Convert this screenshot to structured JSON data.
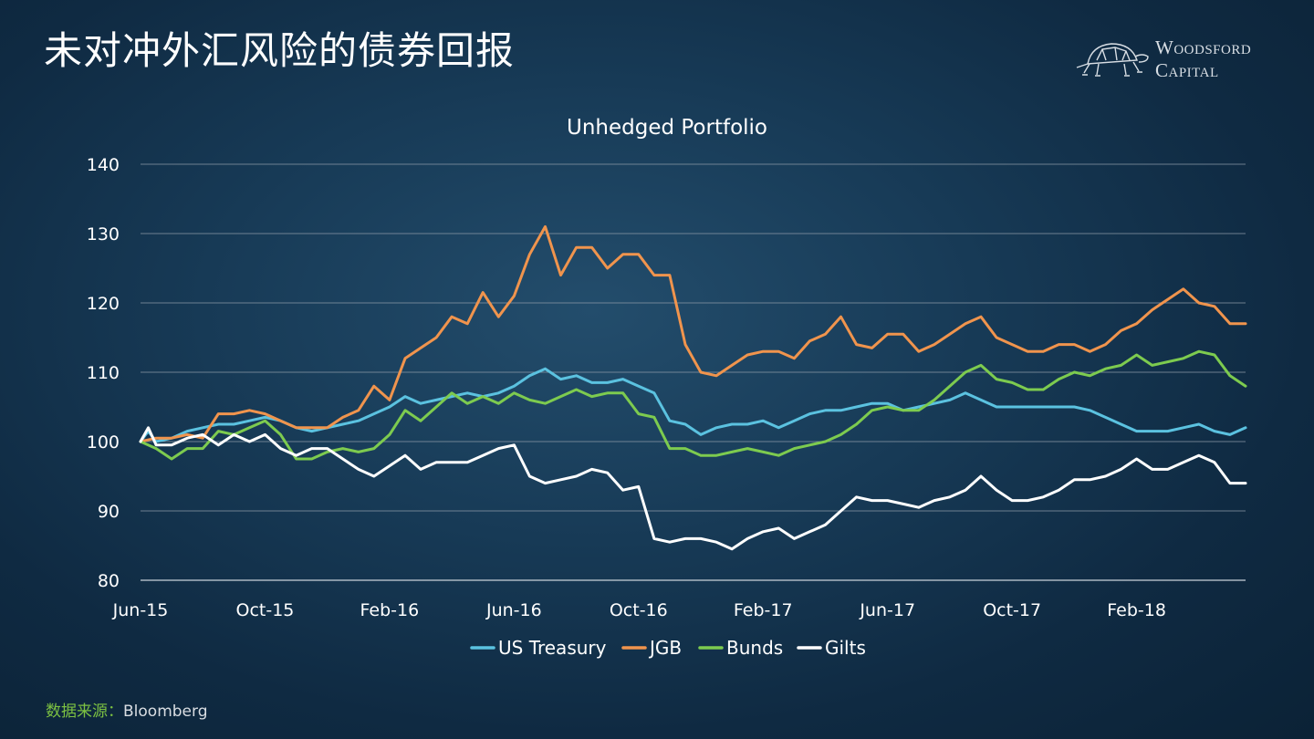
{
  "slide": {
    "title": "未对冲外汇风险的债券回报",
    "source_label": "数据来源：",
    "source_value": "Bloomberg"
  },
  "logo": {
    "line1": "Woodsford",
    "line2": "Capital",
    "icon": "tortoise-icon"
  },
  "chart_data": {
    "type": "line",
    "title": "Unhedged Portfolio",
    "xlabel": "",
    "ylabel": "",
    "ylim": [
      80,
      140
    ],
    "yticks": [
      80,
      90,
      100,
      110,
      120,
      130,
      140
    ],
    "xlim": [
      0,
      35.5
    ],
    "xticks": [
      {
        "label": "Jun-15",
        "x": 0
      },
      {
        "label": "Oct-15",
        "x": 4
      },
      {
        "label": "Feb-16",
        "x": 8
      },
      {
        "label": "Jun-16",
        "x": 12
      },
      {
        "label": "Oct-16",
        "x": 16
      },
      {
        "label": "Feb-17",
        "x": 20
      },
      {
        "label": "Jun-17",
        "x": 24
      },
      {
        "label": "Oct-17",
        "x": 28
      },
      {
        "label": "Feb-18",
        "x": 32
      }
    ],
    "grid": true,
    "legend_position": "bottom",
    "series": [
      {
        "name": "US Treasury",
        "color": "#5bc2e0",
        "points": [
          [
            0,
            100
          ],
          [
            0.25,
            101.5
          ],
          [
            0.5,
            100
          ],
          [
            1,
            100.5
          ],
          [
            1.5,
            101.5
          ],
          [
            2,
            102
          ],
          [
            2.5,
            102.5
          ],
          [
            3,
            102.5
          ],
          [
            3.5,
            103
          ],
          [
            4,
            103.5
          ],
          [
            4.5,
            103
          ],
          [
            5,
            102
          ],
          [
            5.5,
            101.5
          ],
          [
            6,
            102
          ],
          [
            6.5,
            102.5
          ],
          [
            7,
            103
          ],
          [
            7.5,
            104
          ],
          [
            8,
            105
          ],
          [
            8.5,
            106.5
          ],
          [
            9,
            105.5
          ],
          [
            9.5,
            106
          ],
          [
            10,
            106.5
          ],
          [
            10.5,
            107
          ],
          [
            11,
            106.5
          ],
          [
            11.5,
            107
          ],
          [
            12,
            108
          ],
          [
            12.5,
            109.5
          ],
          [
            13,
            110.5
          ],
          [
            13.5,
            109
          ],
          [
            14,
            109.5
          ],
          [
            14.5,
            108.5
          ],
          [
            15,
            108.5
          ],
          [
            15.5,
            109
          ],
          [
            16,
            108
          ],
          [
            16.5,
            107
          ],
          [
            17,
            103
          ],
          [
            17.5,
            102.5
          ],
          [
            18,
            101
          ],
          [
            18.5,
            102
          ],
          [
            19,
            102.5
          ],
          [
            19.5,
            102.5
          ],
          [
            20,
            103
          ],
          [
            20.5,
            102
          ],
          [
            21,
            103
          ],
          [
            21.5,
            104
          ],
          [
            22,
            104.5
          ],
          [
            22.5,
            104.5
          ],
          [
            23,
            105
          ],
          [
            23.5,
            105.5
          ],
          [
            24,
            105.5
          ],
          [
            24.5,
            104.5
          ],
          [
            25,
            105
          ],
          [
            25.5,
            105.5
          ],
          [
            26,
            106
          ],
          [
            26.5,
            107
          ],
          [
            27,
            106
          ],
          [
            27.5,
            105
          ],
          [
            28,
            105
          ],
          [
            28.5,
            105
          ],
          [
            29,
            105
          ],
          [
            29.5,
            105
          ],
          [
            30,
            105
          ],
          [
            30.5,
            104.5
          ],
          [
            31,
            103.5
          ],
          [
            31.5,
            102.5
          ],
          [
            32,
            101.5
          ],
          [
            32.5,
            101.5
          ],
          [
            33,
            101.5
          ],
          [
            33.5,
            102
          ],
          [
            34,
            102.5
          ],
          [
            34.5,
            101.5
          ],
          [
            35,
            101
          ],
          [
            35.5,
            102
          ]
        ]
      },
      {
        "name": "JGB",
        "color": "#f0944d",
        "points": [
          [
            0,
            100
          ],
          [
            0.5,
            100.5
          ],
          [
            1,
            100.5
          ],
          [
            1.5,
            101
          ],
          [
            2,
            100.5
          ],
          [
            2.5,
            104
          ],
          [
            3,
            104
          ],
          [
            3.5,
            104.5
          ],
          [
            4,
            104
          ],
          [
            4.5,
            103
          ],
          [
            5,
            102
          ],
          [
            5.5,
            102
          ],
          [
            6,
            102
          ],
          [
            6.5,
            103.5
          ],
          [
            7,
            104.5
          ],
          [
            7.5,
            108
          ],
          [
            8,
            106
          ],
          [
            8.5,
            112
          ],
          [
            9,
            113.5
          ],
          [
            9.5,
            115
          ],
          [
            10,
            118
          ],
          [
            10.5,
            117
          ],
          [
            11,
            121.5
          ],
          [
            11.5,
            118
          ],
          [
            12,
            121
          ],
          [
            12.5,
            127
          ],
          [
            13,
            131
          ],
          [
            13.5,
            124
          ],
          [
            14,
            128
          ],
          [
            14.5,
            128
          ],
          [
            15,
            125
          ],
          [
            15.5,
            127
          ],
          [
            16,
            127
          ],
          [
            16.5,
            124
          ],
          [
            17,
            124
          ],
          [
            17.5,
            114
          ],
          [
            18,
            110
          ],
          [
            18.5,
            109.5
          ],
          [
            19,
            111
          ],
          [
            19.5,
            112.5
          ],
          [
            20,
            113
          ],
          [
            20.5,
            113
          ],
          [
            21,
            112
          ],
          [
            21.5,
            114.5
          ],
          [
            22,
            115.5
          ],
          [
            22.5,
            118
          ],
          [
            23,
            114
          ],
          [
            23.5,
            113.5
          ],
          [
            24,
            115.5
          ],
          [
            24.5,
            115.5
          ],
          [
            25,
            113
          ],
          [
            25.5,
            114
          ],
          [
            26,
            115.5
          ],
          [
            26.5,
            117
          ],
          [
            27,
            118
          ],
          [
            27.5,
            115
          ],
          [
            28,
            114
          ],
          [
            28.5,
            113
          ],
          [
            29,
            113
          ],
          [
            29.5,
            114
          ],
          [
            30,
            114
          ],
          [
            30.5,
            113
          ],
          [
            31,
            114
          ],
          [
            31.5,
            116
          ],
          [
            32,
            117
          ],
          [
            32.5,
            119
          ],
          [
            33,
            120.5
          ],
          [
            33.5,
            122
          ],
          [
            34,
            120
          ],
          [
            34.5,
            119.5
          ],
          [
            35,
            117
          ],
          [
            35.5,
            117
          ]
        ]
      },
      {
        "name": "Bunds",
        "color": "#7dcb4f",
        "points": [
          [
            0,
            100
          ],
          [
            0.5,
            99
          ],
          [
            1,
            97.5
          ],
          [
            1.5,
            99
          ],
          [
            2,
            99
          ],
          [
            2.5,
            101.5
          ],
          [
            3,
            101
          ],
          [
            3.5,
            102
          ],
          [
            4,
            103
          ],
          [
            4.5,
            101
          ],
          [
            5,
            97.5
          ],
          [
            5.5,
            97.5
          ],
          [
            6,
            98.5
          ],
          [
            6.5,
            99
          ],
          [
            7,
            98.5
          ],
          [
            7.5,
            99
          ],
          [
            8,
            101
          ],
          [
            8.5,
            104.5
          ],
          [
            9,
            103
          ],
          [
            9.5,
            105
          ],
          [
            10,
            107
          ],
          [
            10.5,
            105.5
          ],
          [
            11,
            106.5
          ],
          [
            11.5,
            105.5
          ],
          [
            12,
            107
          ],
          [
            12.5,
            106
          ],
          [
            13,
            105.5
          ],
          [
            13.5,
            106.5
          ],
          [
            14,
            107.5
          ],
          [
            14.5,
            106.5
          ],
          [
            15,
            107
          ],
          [
            15.5,
            107
          ],
          [
            16,
            104
          ],
          [
            16.5,
            103.5
          ],
          [
            17,
            99
          ],
          [
            17.5,
            99
          ],
          [
            18,
            98
          ],
          [
            18.5,
            98
          ],
          [
            19,
            98.5
          ],
          [
            19.5,
            99
          ],
          [
            20,
            98.5
          ],
          [
            20.5,
            98
          ],
          [
            21,
            99
          ],
          [
            21.5,
            99.5
          ],
          [
            22,
            100
          ],
          [
            22.5,
            101
          ],
          [
            23,
            102.5
          ],
          [
            23.5,
            104.5
          ],
          [
            24,
            105
          ],
          [
            24.5,
            104.5
          ],
          [
            25,
            104.5
          ],
          [
            25.5,
            106
          ],
          [
            26,
            108
          ],
          [
            26.5,
            110
          ],
          [
            27,
            111
          ],
          [
            27.5,
            109
          ],
          [
            28,
            108.5
          ],
          [
            28.5,
            107.5
          ],
          [
            29,
            107.5
          ],
          [
            29.5,
            109
          ],
          [
            30,
            110
          ],
          [
            30.5,
            109.5
          ],
          [
            31,
            110.5
          ],
          [
            31.5,
            111
          ],
          [
            32,
            112.5
          ],
          [
            32.5,
            111
          ],
          [
            33,
            111.5
          ],
          [
            33.5,
            112
          ],
          [
            34,
            113
          ],
          [
            34.5,
            112.5
          ],
          [
            35,
            109.5
          ],
          [
            35.5,
            108
          ]
        ]
      },
      {
        "name": "Gilts",
        "color": "#ffffff",
        "points": [
          [
            0,
            100
          ],
          [
            0.25,
            102
          ],
          [
            0.5,
            99.5
          ],
          [
            1,
            99.5
          ],
          [
            1.5,
            100.5
          ],
          [
            2,
            101
          ],
          [
            2.5,
            99.5
          ],
          [
            3,
            101
          ],
          [
            3.5,
            100
          ],
          [
            4,
            101
          ],
          [
            4.5,
            99
          ],
          [
            5,
            98
          ],
          [
            5.5,
            99
          ],
          [
            6,
            99
          ],
          [
            6.5,
            97.5
          ],
          [
            7,
            96
          ],
          [
            7.5,
            95
          ],
          [
            8,
            96.5
          ],
          [
            8.5,
            98
          ],
          [
            9,
            96
          ],
          [
            9.5,
            97
          ],
          [
            10,
            97
          ],
          [
            10.5,
            97
          ],
          [
            11,
            98
          ],
          [
            11.5,
            99
          ],
          [
            12,
            99.5
          ],
          [
            12.5,
            95
          ],
          [
            13,
            94
          ],
          [
            13.5,
            94.5
          ],
          [
            14,
            95
          ],
          [
            14.5,
            96
          ],
          [
            15,
            95.5
          ],
          [
            15.5,
            93
          ],
          [
            16,
            93.5
          ],
          [
            16.5,
            86
          ],
          [
            17,
            85.5
          ],
          [
            17.5,
            86
          ],
          [
            18,
            86
          ],
          [
            18.5,
            85.5
          ],
          [
            19,
            84.5
          ],
          [
            19.5,
            86
          ],
          [
            20,
            87
          ],
          [
            20.5,
            87.5
          ],
          [
            21,
            86
          ],
          [
            21.5,
            87
          ],
          [
            22,
            88
          ],
          [
            22.5,
            90
          ],
          [
            23,
            92
          ],
          [
            23.5,
            91.5
          ],
          [
            24,
            91.5
          ],
          [
            24.5,
            91
          ],
          [
            25,
            90.5
          ],
          [
            25.5,
            91.5
          ],
          [
            26,
            92
          ],
          [
            26.5,
            93
          ],
          [
            27,
            95
          ],
          [
            27.5,
            93
          ],
          [
            28,
            91.5
          ],
          [
            28.5,
            91.5
          ],
          [
            29,
            92
          ],
          [
            29.5,
            93
          ],
          [
            30,
            94.5
          ],
          [
            30.5,
            94.5
          ],
          [
            31,
            95
          ],
          [
            31.5,
            96
          ],
          [
            32,
            97.5
          ],
          [
            32.5,
            96
          ],
          [
            33,
            96
          ],
          [
            33.5,
            97
          ],
          [
            34,
            98
          ],
          [
            34.5,
            97
          ],
          [
            35,
            94
          ],
          [
            35.5,
            94
          ]
        ]
      }
    ]
  }
}
